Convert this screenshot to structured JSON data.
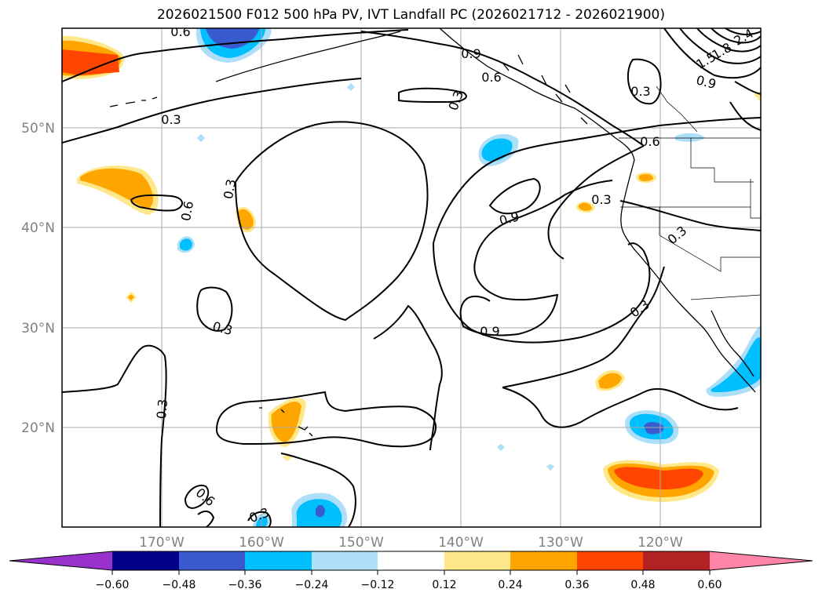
{
  "title": "2026021500 F012 500 hPa PV, IVT Landfall PC (2026021712 - 2026021900)",
  "lat_labels": [
    "50°N",
    "40°N",
    "30°N",
    "20°N"
  ],
  "lon_labels": [
    "170°W",
    "160°W",
    "150°W",
    "140°W",
    "130°W",
    "120°W"
  ],
  "colorbar": {
    "ticks": [
      "−0.60",
      "−0.48",
      "−0.36",
      "−0.24",
      "−0.12",
      "0.12",
      "0.24",
      "0.36",
      "0.48",
      "0.60"
    ],
    "colors": [
      "#9932CC",
      "#00008B",
      "#3A5BD0",
      "#00BFFF",
      "#ADE0F8",
      "#FFFFFF",
      "#FFE88A",
      "#FFA500",
      "#FF4500",
      "#B22222",
      "#FF85A8"
    ]
  },
  "contour_labels": [
    "0.6",
    "0.9",
    "0.6",
    "0.3",
    "0.3",
    "0.3",
    "0.3",
    "0.6",
    "0.9",
    "0.9",
    "0.3",
    "0.3",
    "0.3",
    "0.3",
    "0.3",
    "0.6",
    "0.6",
    "0.3",
    "0.9",
    "1.5",
    "1.8",
    "2.4"
  ]
}
